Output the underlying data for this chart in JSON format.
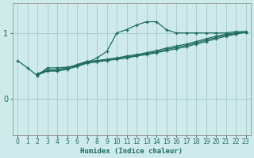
{
  "xlabel": "Humidex (Indice chaleur)",
  "bg_color": "#ceeaea",
  "grid_color": "#aacfcf",
  "line_color": "#1e6b60",
  "xlim": [
    -0.5,
    23.5
  ],
  "ylim": [
    -0.55,
    1.45
  ],
  "yticks": [
    0,
    1
  ],
  "xticks": [
    0,
    1,
    2,
    3,
    4,
    5,
    6,
    7,
    8,
    9,
    10,
    11,
    12,
    13,
    14,
    15,
    16,
    17,
    18,
    19,
    20,
    21,
    22,
    23
  ],
  "series": [
    {
      "x": [
        0,
        1,
        2,
        3,
        4,
        5,
        6,
        7,
        8,
        9,
        10,
        11,
        12,
        13,
        14,
        15,
        16,
        17,
        18,
        19,
        20,
        21,
        22,
        23
      ],
      "y": [
        0.58,
        0.47,
        0.35,
        0.47,
        0.47,
        0.48,
        0.5,
        0.55,
        0.62,
        0.72,
        1.0,
        1.05,
        1.12,
        1.17,
        1.17,
        1.05,
        1.0,
        1.0,
        1.0,
        1.0,
        1.0,
        1.0,
        1.02,
        1.02
      ]
    },
    {
      "x": [
        2,
        3,
        4,
        5,
        6,
        7,
        8,
        9,
        10,
        11,
        12,
        13,
        14,
        15,
        16,
        17,
        18,
        19,
        20,
        21,
        22,
        23
      ],
      "y": [
        0.38,
        0.44,
        0.44,
        0.47,
        0.52,
        0.57,
        0.58,
        0.6,
        0.62,
        0.65,
        0.67,
        0.7,
        0.73,
        0.77,
        0.8,
        0.83,
        0.87,
        0.91,
        0.95,
        0.98,
        1.0,
        1.01
      ]
    },
    {
      "x": [
        2,
        3,
        4,
        5,
        6,
        7,
        8,
        9,
        10,
        11,
        12,
        13,
        14,
        15,
        16,
        17,
        18,
        19,
        20,
        21,
        22,
        23
      ],
      "y": [
        0.37,
        0.43,
        0.43,
        0.46,
        0.51,
        0.56,
        0.57,
        0.59,
        0.61,
        0.63,
        0.66,
        0.69,
        0.71,
        0.75,
        0.78,
        0.81,
        0.85,
        0.89,
        0.93,
        0.97,
        0.99,
        1.01
      ]
    },
    {
      "x": [
        2,
        3,
        4,
        5,
        6,
        7,
        8,
        9,
        10,
        11,
        12,
        13,
        14,
        15,
        16,
        17,
        18,
        19,
        20,
        21,
        22,
        23
      ],
      "y": [
        0.36,
        0.42,
        0.42,
        0.45,
        0.49,
        0.54,
        0.56,
        0.58,
        0.6,
        0.62,
        0.65,
        0.67,
        0.7,
        0.73,
        0.76,
        0.79,
        0.83,
        0.87,
        0.91,
        0.95,
        0.98,
        1.01
      ]
    }
  ]
}
